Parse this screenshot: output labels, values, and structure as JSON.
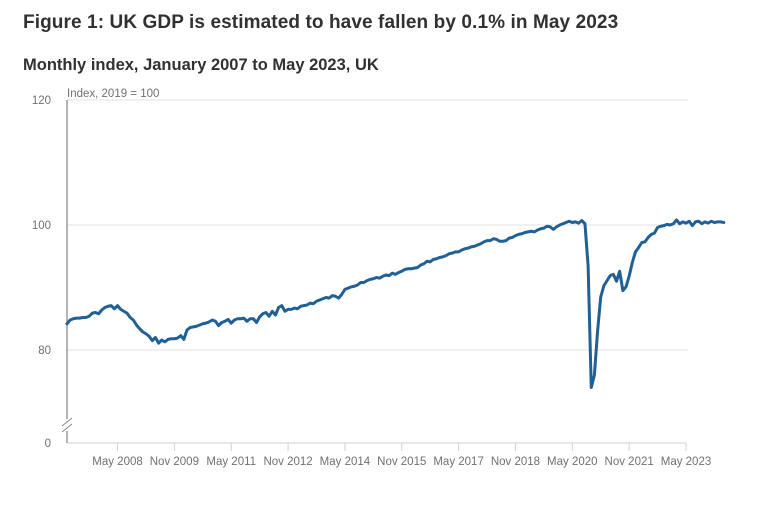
{
  "figure": {
    "title": "Figure 1: UK GDP is estimated to have fallen by 0.1% in May 2023",
    "subtitle": "Monthly index, January 2007 to May 2023, UK"
  },
  "colors": {
    "line": "#206095",
    "gridline": "#e0e0e0",
    "axis": "#8a8a8a",
    "x_axis": "#c8d2e0",
    "tick_text": "#707071"
  },
  "chart_data": {
    "type": "line",
    "title": "Figure 1: UK GDP is estimated to have fallen by 0.1% in May 2023",
    "subtitle": "Monthly index, January 2007 to May 2023, UK",
    "ylabel": "Index, 2019 = 100",
    "xlabel": "",
    "ylim": [
      0,
      120
    ],
    "y_axis_break": "between 0 and 80 (axis shown from 80 upward after break)",
    "y_ticks": [
      0,
      80,
      100,
      120
    ],
    "x_ticks": [
      "May 2008",
      "Nov 2009",
      "May 2011",
      "Nov 2012",
      "May 2014",
      "Nov 2015",
      "May 2017",
      "Nov 2018",
      "May 2020",
      "Nov 2021",
      "May 2023"
    ],
    "grid": true,
    "legend": "none",
    "x_start": "Jan 2007",
    "x_end": "May 2023",
    "frequency": "monthly",
    "series": [
      {
        "name": "UK GDP monthly index",
        "values": [
          84.2,
          84.8,
          85.0,
          85.1,
          85.1,
          85.2,
          85.2,
          85.4,
          85.9,
          86.0,
          85.8,
          86.4,
          86.8,
          87.0,
          87.1,
          86.6,
          87.1,
          86.5,
          86.2,
          85.9,
          85.2,
          84.8,
          84.0,
          83.4,
          82.9,
          82.6,
          82.2,
          81.5,
          82.0,
          81.1,
          81.6,
          81.3,
          81.7,
          81.8,
          81.8,
          81.9,
          82.3,
          81.7,
          83.2,
          83.6,
          83.7,
          83.8,
          84.0,
          84.2,
          84.3,
          84.5,
          84.8,
          84.6,
          83.9,
          84.4,
          84.6,
          84.9,
          84.3,
          84.8,
          85.0,
          85.0,
          85.1,
          84.6,
          85.0,
          85.0,
          84.4,
          85.3,
          85.8,
          86.0,
          85.4,
          86.2,
          85.6,
          86.8,
          87.1,
          86.2,
          86.5,
          86.5,
          86.7,
          86.6,
          87.0,
          87.1,
          87.2,
          87.5,
          87.4,
          87.8,
          88.0,
          88.2,
          88.4,
          88.3,
          88.7,
          88.6,
          88.3,
          88.9,
          89.7,
          89.9,
          90.1,
          90.2,
          90.4,
          90.8,
          90.8,
          91.1,
          91.3,
          91.4,
          91.6,
          91.5,
          91.8,
          92.0,
          91.9,
          92.3,
          92.1,
          92.4,
          92.6,
          92.9,
          93.0,
          93.0,
          93.1,
          93.2,
          93.6,
          93.8,
          94.2,
          94.1,
          94.5,
          94.6,
          94.8,
          94.9,
          95.1,
          95.4,
          95.5,
          95.7,
          95.7,
          96.0,
          96.2,
          96.3,
          96.5,
          96.6,
          96.8,
          97.0,
          97.3,
          97.5,
          97.5,
          97.8,
          97.7,
          97.4,
          97.4,
          97.5,
          97.9,
          98.0,
          98.3,
          98.5,
          98.6,
          98.8,
          98.9,
          99.0,
          98.9,
          99.2,
          99.4,
          99.5,
          99.8,
          99.7,
          99.3,
          99.7,
          100.0,
          100.2,
          100.4,
          100.6,
          100.4,
          100.5,
          100.3,
          100.7,
          100.2,
          93.5,
          74.0,
          76.0,
          83.0,
          88.5,
          90.3,
          91.1,
          91.9,
          92.1,
          91.0,
          92.6,
          89.5,
          90.1,
          91.8,
          94.0,
          95.7,
          96.4,
          97.2,
          97.3,
          98.0,
          98.5,
          98.7,
          99.6,
          99.8,
          99.9,
          100.1,
          100.0,
          100.2,
          100.8,
          100.2,
          100.5,
          100.3,
          100.6,
          99.9,
          100.5,
          100.6,
          100.2,
          100.5,
          100.3,
          100.6,
          100.4,
          100.5,
          100.5,
          100.4
        ]
      }
    ]
  }
}
